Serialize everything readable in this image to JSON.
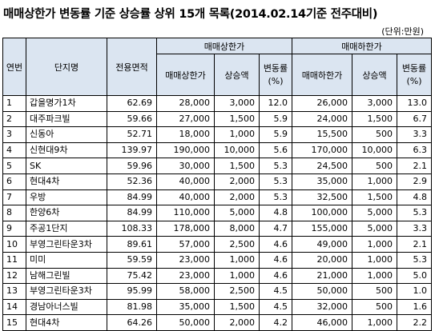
{
  "title": "매매상한가 변동률 기준 상승률 상위 15개 목록(2014.02.14기준 전주대비)",
  "unit": "(단위:만원)",
  "headers": {
    "rank": "연번",
    "complex": "단지명",
    "area": "전용면적",
    "upper_group": "매매상한가",
    "lower_group": "매매하한가",
    "upper_price": "매매상한가",
    "upper_rise": "상승액",
    "upper_rate": "변동률",
    "lower_price": "매매하한가",
    "lower_rise": "상승액",
    "lower_rate": "변동률",
    "rate_unit": "(%)"
  },
  "rows": [
    {
      "rank": "1",
      "name": "갑을명가1차",
      "area": "62.69",
      "up_price": "28,000",
      "up_rise": "3,000",
      "up_rate": "12.0",
      "lo_price": "26,000",
      "lo_rise": "3,000",
      "lo_rate": "13.0"
    },
    {
      "rank": "2",
      "name": "대주파크빌",
      "area": "59.66",
      "up_price": "27,000",
      "up_rise": "1,500",
      "up_rate": "5.9",
      "lo_price": "24,000",
      "lo_rise": "1,500",
      "lo_rate": "6.7"
    },
    {
      "rank": "3",
      "name": "신동아",
      "area": "52.71",
      "up_price": "18,000",
      "up_rise": "1,000",
      "up_rate": "5.9",
      "lo_price": "15,500",
      "lo_rise": "500",
      "lo_rate": "3.3"
    },
    {
      "rank": "4",
      "name": "신현대9차",
      "area": "139.97",
      "up_price": "190,000",
      "up_rise": "10,000",
      "up_rate": "5.6",
      "lo_price": "170,000",
      "lo_rise": "10,000",
      "lo_rate": "6.3"
    },
    {
      "rank": "5",
      "name": "SK",
      "area": "59.96",
      "up_price": "30,000",
      "up_rise": "1,500",
      "up_rate": "5.3",
      "lo_price": "24,500",
      "lo_rise": "500",
      "lo_rate": "2.1"
    },
    {
      "rank": "6",
      "name": "현대4차",
      "area": "52.36",
      "up_price": "40,000",
      "up_rise": "2,000",
      "up_rate": "5.3",
      "lo_price": "35,000",
      "lo_rise": "1,000",
      "lo_rate": "2.9"
    },
    {
      "rank": "7",
      "name": "우방",
      "area": "84.99",
      "up_price": "40,000",
      "up_rise": "2,000",
      "up_rate": "5.3",
      "lo_price": "32,500",
      "lo_rise": "1,500",
      "lo_rate": "4.8"
    },
    {
      "rank": "8",
      "name": "한양6차",
      "area": "84.99",
      "up_price": "110,000",
      "up_rise": "5,000",
      "up_rate": "4.8",
      "lo_price": "100,000",
      "lo_rise": "5,000",
      "lo_rate": "5.3"
    },
    {
      "rank": "9",
      "name": "주공1단지",
      "area": "108.33",
      "up_price": "178,000",
      "up_rise": "8,000",
      "up_rate": "4.7",
      "lo_price": "155,000",
      "lo_rise": "5,000",
      "lo_rate": "3.3"
    },
    {
      "rank": "10",
      "name": "부영그린타운3차",
      "area": "89.61",
      "up_price": "57,000",
      "up_rise": "2,500",
      "up_rate": "4.6",
      "lo_price": "49,000",
      "lo_rise": "1,000",
      "lo_rate": "2.1"
    },
    {
      "rank": "11",
      "name": "미미",
      "area": "59.59",
      "up_price": "23,000",
      "up_rise": "1,000",
      "up_rate": "4.6",
      "lo_price": "20,000",
      "lo_rise": "1,000",
      "lo_rate": "5.3"
    },
    {
      "rank": "12",
      "name": "남해그린빌",
      "area": "75.42",
      "up_price": "23,000",
      "up_rise": "1,000",
      "up_rate": "4.6",
      "lo_price": "21,000",
      "lo_rise": "1,000",
      "lo_rate": "5.0"
    },
    {
      "rank": "13",
      "name": "부영그린타운3차",
      "area": "95.99",
      "up_price": "58,000",
      "up_rise": "2,500",
      "up_rate": "4.5",
      "lo_price": "50,000",
      "lo_rise": "500",
      "lo_rate": "1.0"
    },
    {
      "rank": "14",
      "name": "경남아너스빌",
      "area": "81.98",
      "up_price": "35,000",
      "up_rise": "1,500",
      "up_rate": "4.5",
      "lo_price": "32,000",
      "lo_rise": "500",
      "lo_rate": "1.6"
    },
    {
      "rank": "15",
      "name": "현대4차",
      "area": "64.26",
      "up_price": "50,000",
      "up_rise": "2,000",
      "up_rate": "4.2",
      "lo_price": "46,000",
      "lo_rise": "1,000",
      "lo_rate": "2.2"
    }
  ],
  "colors": {
    "header_bg": "#dbe5f1",
    "border": "#000000"
  }
}
